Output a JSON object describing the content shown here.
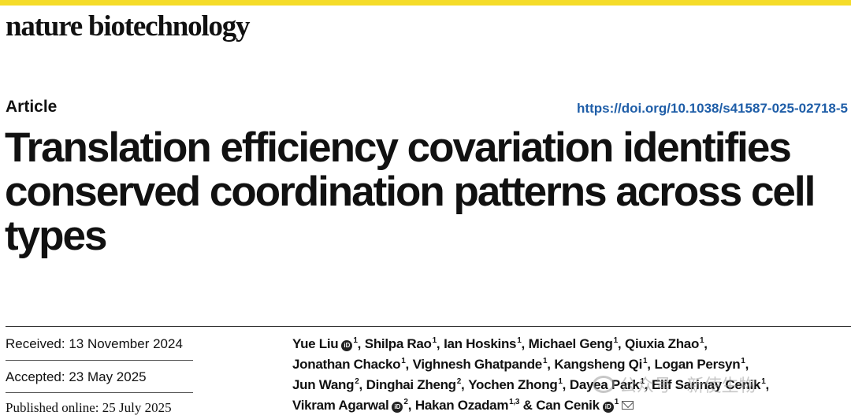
{
  "colors": {
    "accent_bar": "#f5dc29",
    "doi_link": "#1f5ea8",
    "watermark": "#9a9a9a"
  },
  "journal": {
    "name": "nature biotechnology"
  },
  "article": {
    "type": "Article",
    "doi": "https://doi.org/10.1038/s41587-025-02718-5",
    "title": "Translation efficiency covariation identifies conserved coordination patterns across cell types"
  },
  "dates": {
    "received": "Received: 13 November 2024",
    "accepted": "Accepted: 23 May 2025",
    "published": "Published online: 25 July 2025"
  },
  "orcid_label": "iD",
  "authors_lines": [
    [
      {
        "name": "Yue Liu",
        "orcid": true,
        "sup": "1",
        "sep": ","
      },
      {
        "name": "Shilpa Rao",
        "sup": "1",
        "sep": ","
      },
      {
        "name": "Ian Hoskins",
        "sup": "1",
        "sep": ","
      },
      {
        "name": "Michael Geng",
        "sup": "1",
        "sep": ","
      },
      {
        "name": "Qiuxia Zhao",
        "sup": "1",
        "sep": ","
      }
    ],
    [
      {
        "name": "Jonathan Chacko",
        "sup": "1",
        "sep": ","
      },
      {
        "name": "Vighnesh Ghatpande",
        "sup": "1",
        "sep": ","
      },
      {
        "name": "Kangsheng Qi",
        "sup": "1",
        "sep": ","
      },
      {
        "name": "Logan Persyn",
        "sup": "1",
        "sep": ","
      }
    ],
    [
      {
        "name": "Jun Wang",
        "sup": "2",
        "sep": ","
      },
      {
        "name": "Dinghai Zheng",
        "sup": "2",
        "sep": ","
      },
      {
        "name": "Yochen Zhong",
        "sup": "1",
        "sep": ","
      },
      {
        "name": "Dayea Park",
        "sup": "1",
        "sep": ","
      },
      {
        "name": "Elif Sarinay Cenik",
        "sup": "1",
        "sep": ","
      }
    ],
    [
      {
        "name": "Vikram Agarwal",
        "orcid": true,
        "sup": "2",
        "sep": ","
      },
      {
        "name": "Hakan Ozadam",
        "sup": "1,3",
        "sep": " &"
      },
      {
        "name": "Can Cenik",
        "orcid": true,
        "sup": "1",
        "mail": true,
        "sep": ""
      }
    ]
  ],
  "watermark": {
    "text": "公众号 · 新使生物",
    "icon": "wechat-icon"
  }
}
